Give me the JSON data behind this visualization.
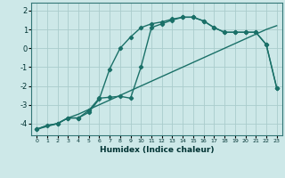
{
  "xlabel": "Humidex (Indice chaleur)",
  "bg_color": "#cde8e8",
  "grid_color": "#aacccc",
  "line_color": "#1a7068",
  "xlim": [
    -0.5,
    23.5
  ],
  "ylim": [
    -4.6,
    2.4
  ],
  "xticks": [
    0,
    1,
    2,
    3,
    4,
    5,
    6,
    7,
    8,
    9,
    10,
    11,
    12,
    13,
    14,
    15,
    16,
    17,
    18,
    19,
    20,
    21,
    22,
    23
  ],
  "yticks": [
    -4,
    -3,
    -2,
    -1,
    0,
    1,
    2
  ],
  "curve_straight_x": [
    0,
    1,
    2,
    3,
    4,
    5,
    6,
    7,
    8,
    9,
    10,
    11,
    12,
    13,
    14,
    15,
    16,
    17,
    18,
    19,
    20,
    21,
    22,
    23
  ],
  "curve_straight_y": [
    -4.3,
    -4.1,
    -4.0,
    -3.7,
    -3.5,
    -3.25,
    -3.0,
    -2.75,
    -2.5,
    -2.25,
    -2.0,
    -1.75,
    -1.5,
    -1.25,
    -1.0,
    -0.75,
    -0.5,
    -0.25,
    0.0,
    0.25,
    0.5,
    0.75,
    1.0,
    1.2
  ],
  "curve_main_x": [
    0,
    1,
    2,
    3,
    4,
    5,
    6,
    7,
    8,
    9,
    10,
    11,
    12,
    13,
    14,
    15,
    16,
    17,
    18,
    19,
    20,
    21,
    22,
    23
  ],
  "curve_main_y": [
    -4.3,
    -4.1,
    -4.0,
    -3.7,
    -3.7,
    -3.4,
    -2.7,
    -1.1,
    0.0,
    0.6,
    1.1,
    1.3,
    1.4,
    1.55,
    1.65,
    1.65,
    1.45,
    1.1,
    0.85,
    0.85,
    0.85,
    0.85,
    0.2,
    -2.1
  ],
  "curve_alt_x": [
    0,
    2,
    3,
    4,
    5,
    6,
    7,
    8,
    9,
    10,
    11,
    12,
    13,
    14,
    15,
    16,
    17,
    18,
    19,
    20,
    21,
    22,
    23
  ],
  "curve_alt_y": [
    -4.3,
    -4.0,
    -3.7,
    -3.7,
    -3.3,
    -2.65,
    -2.6,
    -2.55,
    -2.65,
    -1.0,
    1.1,
    1.3,
    1.5,
    1.65,
    1.65,
    1.45,
    1.1,
    0.85,
    0.85,
    0.85,
    0.85,
    0.2,
    -2.1
  ]
}
